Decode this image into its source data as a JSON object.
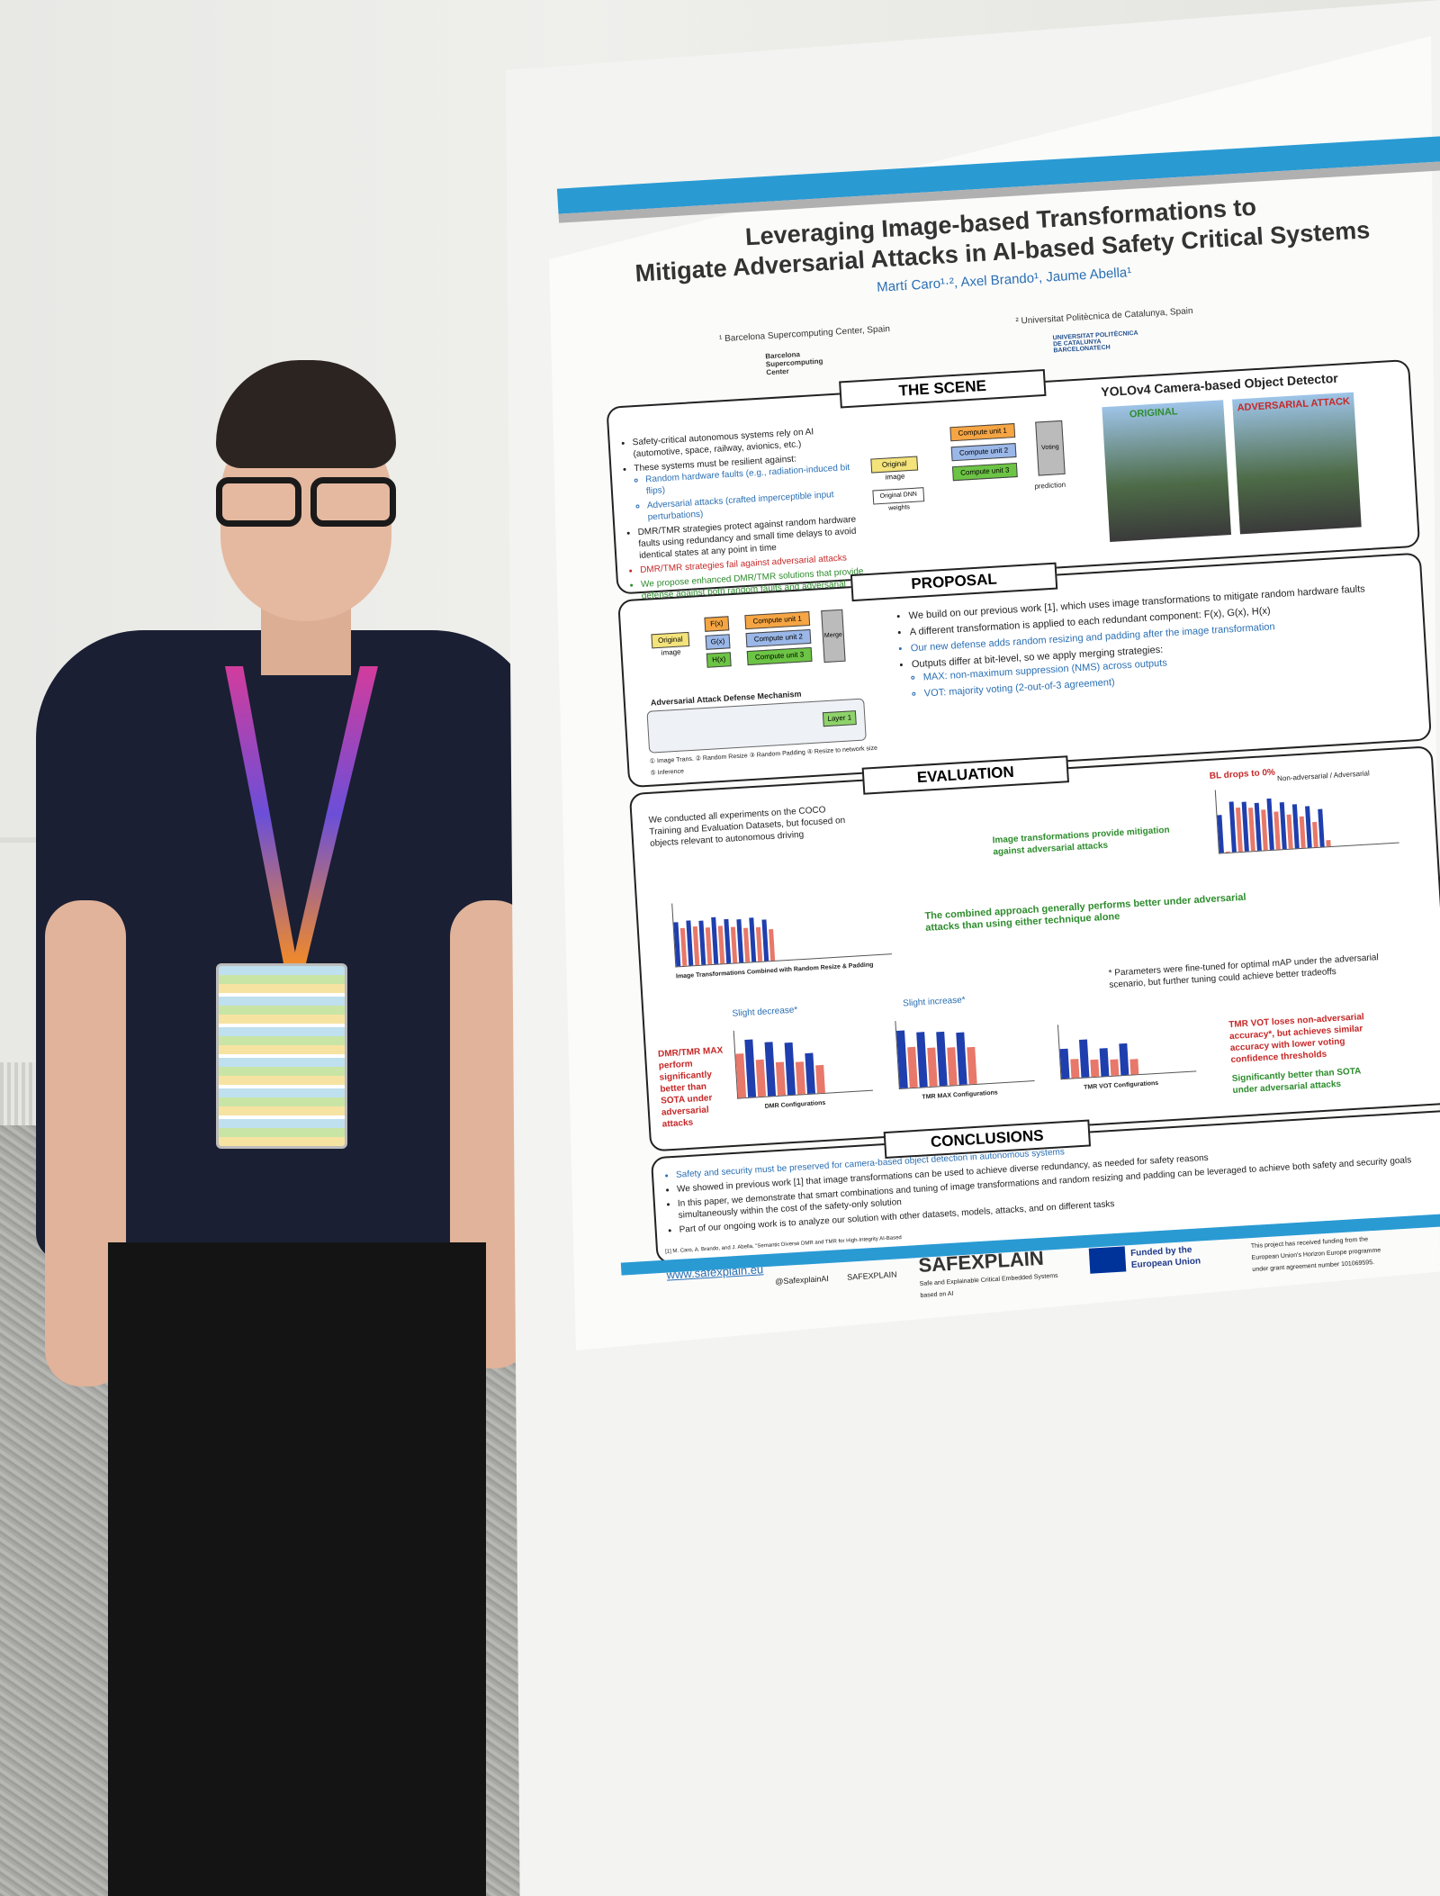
{
  "poster": {
    "title_line1": "Leveraging Image-based Transformations to",
    "title_line2": "Mitigate Adversarial Attacks in AI-based Safety Critical Systems",
    "authors": "Martí Caro¹·², Axel Brando¹, Jaume Abella¹",
    "affiliation1": "¹ Barcelona Supercomputing Center, Spain",
    "affiliation2": "² Universitat Politècnica de Catalunya, Spain",
    "bsc_logo": "Barcelona Supercomputing Center",
    "upc_logo": "UNIVERSITAT POLITÈCNICA DE CATALUNYA BARCELONATECH",
    "scene": {
      "heading": "THE SCENE",
      "b1": "Safety-critical autonomous systems rely on AI (automotive, space, railway, avionics, etc.)",
      "b2": "These systems must be resilient against:",
      "b2a": "Random hardware faults (e.g., radiation-induced bit flips)",
      "b2b": "Adversarial attacks (crafted imperceptible input perturbations)",
      "b3": "DMR/TMR strategies protect against random hardware faults using redundancy and small time delays to avoid identical states at any point in time",
      "b4": "DMR/TMR strategies fail against adversarial attacks",
      "b5": "We propose enhanced DMR/TMR solutions that provide defense against both random faults and adversarial attacks",
      "diagram_original": "Original image",
      "diagram_weights": "Original DNN weights",
      "cu1": "Compute unit 1",
      "cu2": "Compute unit 2",
      "cu3": "Compute unit 3",
      "voting": "Voting",
      "prediction": "prediction",
      "yolo_title": "YOLOv4 Camera-based Object Detector",
      "img_original": "ORIGINAL",
      "img_attack": "ADVERSARIAL ATTACK"
    },
    "proposal": {
      "heading": "PROPOSAL",
      "b1": "We build on our previous work [1], which uses image transformations to mitigate random hardware faults",
      "b2": "A different transformation is applied to each redundant component: F(x), G(x), H(x)",
      "b3": "Our new defense adds random resizing and padding after the image transformation",
      "b4": "Outputs differ at bit-level, so we apply merging strategies:",
      "b4a": "MAX: non-maximum suppression (NMS) across outputs",
      "b4b": "VOT: majority voting (2-out-of-3 agreement)",
      "fx": "F(x)",
      "gx": "G(x)",
      "hx": "H(x)",
      "merge": "Merge",
      "mechanism": "Adversarial Attack Defense Mechanism",
      "layer1": "Layer 1",
      "steps": "① Image Trans.  ② Random Resize  ③ Random Padding  ④ Resize to network size  ⑤ Inference"
    },
    "evaluation": {
      "heading": "EVALUATION",
      "e1": "We conducted all experiments on the COCO Training and Evaluation Datasets, but focused on objects relevant to autonomous driving",
      "bl_drops": "BL drops to 0%",
      "mitigation": "Image transformations provide mitigation against adversarial attacks",
      "legend_non": "Non-adversarial",
      "legend_adv": "Adversarial",
      "combined": "The combined approach generally performs better under adversarial attacks than using either technique alone",
      "combined_axis": "Image Transformations Combined with Random Resize & Padding",
      "params": "* Parameters were fine-tuned for optimal mAP under the adversarial scenario, but further tuning could achieve better tradeoffs",
      "slight_decrease": "Slight decrease*",
      "slight_increase": "Slight increase*",
      "dmr_max": "DMR/TMR MAX perform significantly better than SOTA under adversarial attacks",
      "tmr_vot": "TMR VOT loses non-adversarial accuracy*, but achieves similar accuracy with lower voting confidence thresholds",
      "sota": "Significantly better than SOTA under adversarial attacks",
      "dmr_axis": "DMR Configurations",
      "tmr_max_axis": "TMR MAX Configurations",
      "tmr_vot_axis": "TMR VOT Configurations"
    },
    "conclusions": {
      "heading": "CONCLUSIONS",
      "c1": "Safety and security must be preserved for camera-based object detection in autonomous systems",
      "c2": "We showed in previous work [1] that image transformations can be used to achieve diverse redundancy, as needed for safety reasons",
      "c3": "In this paper, we demonstrate that smart combinations and tuning of image transformations and random resizing and padding can be leveraged to achieve both safety and security goals simultaneously within the cost of the safety-only solution",
      "c4": "Part of our ongoing work is to analyze our solution with other datasets, models, attacks, and on different tasks",
      "ref": "[1] M. Caro, A. Brando, and J. Abella, \"Semantic Diverse DMR and TMR for High-Integrity AI-Based Function Efficiency,\" ACM Trans. Cyber-Phys. Syst., Jan. 2025."
    },
    "footer": {
      "url": "www.safexplain.eu",
      "twitter": "@SafexplainAI",
      "linkedin": "SAFEXPLAIN",
      "brand": "SAFEXPLAIN",
      "brand_sub": "Safe and Explainable Critical Embedded Systems based on AI",
      "eu": "Funded by the European Union",
      "grant": "This project has received funding from the European Union's Horizon Europe programme under grant agreement number 101069595."
    }
  },
  "colors": {
    "accent": "#2a9ad3",
    "text_blue": "#2a6fb3",
    "text_green": "#2d8c2d",
    "text_red": "#c62828",
    "bar_blue": "#1f3fae",
    "bar_red": "#e8786a",
    "shirt": "#1a1f33"
  }
}
